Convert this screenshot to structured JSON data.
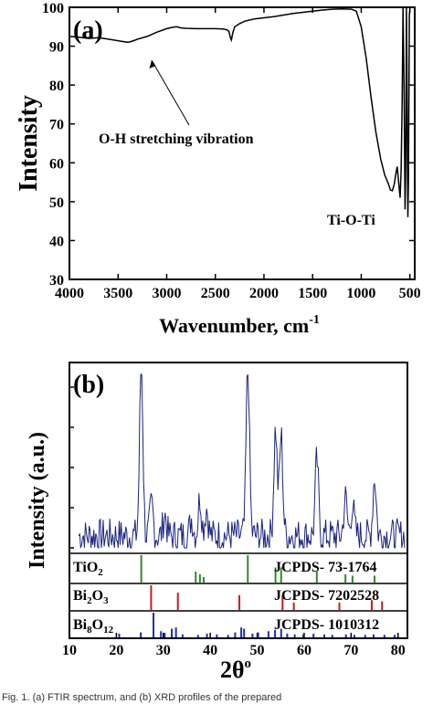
{
  "caption": "Fig. 1. (a) FTIR spectrum, and (b) XRD profiles of the prepared",
  "chart_data": [
    {
      "type": "line",
      "panel_label": "(a)",
      "xlabel": "Wavenumber, cm",
      "xlabel_sup": "-1",
      "ylabel": "Intensity",
      "xlim": [
        4000,
        450
      ],
      "x_reversed": true,
      "ylim": [
        30,
        100
      ],
      "xticks": [
        4000,
        3500,
        3000,
        2500,
        2000,
        1500,
        1000,
        500
      ],
      "yticks": [
        30,
        40,
        50,
        60,
        70,
        80,
        90,
        100
      ],
      "grid": false,
      "annotations": [
        {
          "text": "O-H stretching vibration",
          "arrow_to": [
            3400,
            91
          ]
        },
        {
          "text": "Ti-O-Ti"
        }
      ],
      "series": [
        {
          "x": [
            4000,
            3900,
            3800,
            3700,
            3600,
            3500,
            3450,
            3400,
            3350,
            3300,
            3200,
            3100,
            3000,
            2950,
            2900,
            2850,
            2800,
            2700,
            2600,
            2500,
            2420,
            2380,
            2360,
            2345,
            2335,
            2320,
            2300,
            2250,
            2200,
            2100,
            2000,
            1900,
            1800,
            1700,
            1600,
            1500,
            1400,
            1300,
            1200,
            1100,
            1050,
            1000,
            950,
            900,
            850,
            800,
            760,
            720,
            700,
            680,
            660,
            645,
            630,
            615,
            600,
            590,
            580,
            570,
            560,
            550,
            545,
            540,
            535,
            530,
            525,
            520,
            515,
            510,
            505,
            500
          ],
          "y": [
            92.5,
            92.3,
            92.0,
            92.2,
            91.8,
            91.4,
            91.2,
            91.0,
            91.3,
            91.8,
            92.5,
            93.6,
            94.5,
            94.8,
            95.0,
            94.7,
            94.6,
            94.5,
            94.5,
            94.5,
            94.4,
            94.2,
            93.8,
            92.2,
            91.6,
            93.5,
            95.0,
            95.8,
            96.4,
            97.0,
            97.3,
            97.6,
            98.0,
            98.4,
            98.7,
            99.0,
            99.3,
            99.5,
            99.6,
            99.5,
            99.0,
            95.0,
            87.0,
            77.0,
            68.0,
            61.0,
            57.0,
            54.5,
            53.0,
            52.8,
            54.5,
            57.0,
            59.0,
            55.0,
            51.0,
            58.0,
            75.0,
            100.0,
            80.0,
            48.0,
            55.0,
            70.0,
            100.0,
            85.0,
            60.0,
            46.0,
            55.0,
            75.0,
            98.0,
            99.5
          ]
        }
      ]
    },
    {
      "type": "line",
      "panel_label": "(b)",
      "xlabel": "2θ",
      "xlabel_sup": "o",
      "ylabel": "Intensity (a.u.)",
      "xlim": [
        10,
        82
      ],
      "ylim": [
        0,
        100
      ],
      "xticks": [
        10,
        20,
        30,
        40,
        50,
        60,
        70,
        80
      ],
      "grid": false,
      "series": [
        {
          "peaks": [
            {
              "pos": 25.3,
              "height": 100
            },
            {
              "pos": 27.5,
              "height": 18
            },
            {
              "pos": 30.3,
              "height": 12
            },
            {
              "pos": 36.0,
              "height": 10
            },
            {
              "pos": 37.8,
              "height": 22
            },
            {
              "pos": 39.2,
              "height": 16
            },
            {
              "pos": 48.0,
              "height": 100
            },
            {
              "pos": 53.9,
              "height": 62
            },
            {
              "pos": 55.1,
              "height": 58
            },
            {
              "pos": 62.7,
              "height": 44
            },
            {
              "pos": 68.8,
              "height": 22
            },
            {
              "pos": 70.3,
              "height": 18
            },
            {
              "pos": 75.0,
              "height": 34
            }
          ],
          "baseline_level": 7,
          "noise_amplitude": 10
        }
      ],
      "reference_patterns": [
        {
          "name": "TiO",
          "name_sub": "2",
          "label": "JCPDS- 73-1764",
          "color": "#2e8b2e",
          "lines": [
            [
              25.3,
              100
            ],
            [
              36.9,
              40
            ],
            [
              37.8,
              30
            ],
            [
              38.6,
              20
            ],
            [
              48.0,
              100
            ],
            [
              53.9,
              55
            ],
            [
              55.1,
              55
            ],
            [
              62.7,
              40
            ],
            [
              68.8,
              30
            ],
            [
              70.3,
              25
            ],
            [
              75.0,
              25
            ]
          ]
        },
        {
          "name": "Bi",
          "name_sub": "2",
          "name_mid": "O",
          "name_sub2": "3",
          "label": "JCPDS- 7202528",
          "color": "#cc1a1a",
          "lines": [
            [
              27.4,
              100
            ],
            [
              33.1,
              70
            ],
            [
              46.2,
              60
            ],
            [
              55.4,
              60
            ],
            [
              57.8,
              30
            ],
            [
              67.5,
              30
            ],
            [
              74.4,
              40
            ],
            [
              76.6,
              35
            ]
          ]
        },
        {
          "name": "Bi",
          "name_sub": "8",
          "name_mid": "O",
          "name_sub2": "12",
          "label": "JCPDS- 1010312",
          "color": "#1a2fb8",
          "lines": [
            [
              20.6,
              15
            ],
            [
              25.2,
              20
            ],
            [
              27.9,
              100
            ],
            [
              29.5,
              25
            ],
            [
              30.3,
              18
            ],
            [
              31.8,
              35
            ],
            [
              32.7,
              40
            ],
            [
              34.1,
              12
            ],
            [
              37.4,
              10
            ],
            [
              39.3,
              15
            ],
            [
              41.4,
              12
            ],
            [
              43.8,
              10
            ],
            [
              45.3,
              20
            ],
            [
              46.6,
              40
            ],
            [
              47.2,
              35
            ],
            [
              49.0,
              15
            ],
            [
              50.2,
              20
            ],
            [
              52.4,
              25
            ],
            [
              53.8,
              30
            ],
            [
              55.1,
              35
            ],
            [
              56.4,
              15
            ],
            [
              58.0,
              12
            ],
            [
              59.8,
              12
            ],
            [
              62.0,
              15
            ],
            [
              64.3,
              12
            ],
            [
              66.0,
              10
            ],
            [
              68.9,
              12
            ],
            [
              70.7,
              10
            ],
            [
              73.0,
              10
            ],
            [
              74.8,
              12
            ],
            [
              77.1,
              10
            ],
            [
              79.3,
              10
            ]
          ]
        }
      ]
    }
  ]
}
